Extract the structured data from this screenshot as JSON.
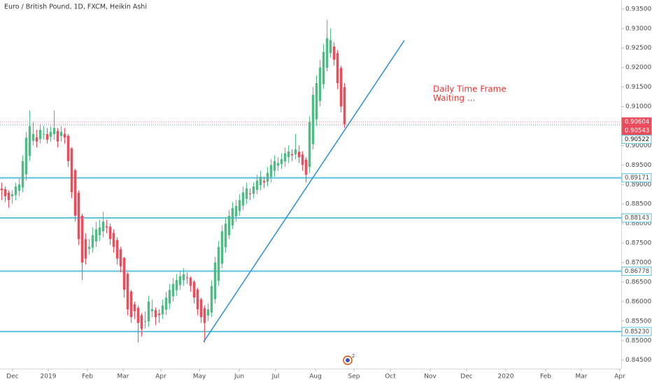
{
  "chart_data": {
    "type": "candlestick",
    "title": "Euro / British Pound, 1D, FXCM, Heikin Ashi",
    "annotation": [
      "Daily Time Frame",
      "Waiting ..."
    ],
    "event_badge": "2",
    "up_color": "#53b987",
    "down_color": "#eb4d5c",
    "open": [
      0.889,
      0.8888,
      0.8879,
      0.887,
      0.8873,
      0.8884,
      0.8892,
      0.8926,
      0.8973,
      0.9012,
      0.9021,
      0.9016,
      0.9028,
      0.9029,
      0.9022,
      0.9029,
      0.9037,
      0.9024,
      0.903,
      0.9025,
      0.8993,
      0.8937,
      0.8879,
      0.882,
      0.876,
      0.8735,
      0.8738,
      0.8754,
      0.877,
      0.878,
      0.8793,
      0.8792,
      0.8776,
      0.8758,
      0.8734,
      0.8712,
      0.8671,
      0.8626,
      0.8593,
      0.8584,
      0.8565,
      0.8548,
      0.8549,
      0.8575,
      0.8578,
      0.8569,
      0.8567,
      0.8579,
      0.8595,
      0.8613,
      0.8629,
      0.8642,
      0.8654,
      0.8662,
      0.8661,
      0.8651,
      0.8631,
      0.8606,
      0.8583,
      0.8564,
      0.8572,
      0.8606,
      0.8653,
      0.8697,
      0.8739,
      0.877,
      0.8795,
      0.8818,
      0.8832,
      0.8846,
      0.8863,
      0.8877,
      0.8876,
      0.8886,
      0.8898,
      0.8909,
      0.8907,
      0.8919,
      0.8935,
      0.8948,
      0.8952,
      0.8959,
      0.897,
      0.8978,
      0.8977,
      0.8984,
      0.8977,
      0.8964,
      0.8945,
      0.9003,
      0.9067,
      0.9114,
      0.9157,
      0.9199,
      0.9237,
      0.9254,
      0.9237,
      0.9199,
      0.915
    ],
    "high": [
      0.8905,
      0.8895,
      0.8885,
      0.8885,
      0.8905,
      0.8915,
      0.8975,
      0.9035,
      0.909,
      0.906,
      0.904,
      0.9055,
      0.905,
      0.9045,
      0.905,
      0.909,
      0.9045,
      0.905,
      0.9045,
      0.903,
      0.8995,
      0.894,
      0.8885,
      0.8825,
      0.8775,
      0.876,
      0.879,
      0.8805,
      0.881,
      0.883,
      0.881,
      0.88,
      0.8785,
      0.8765,
      0.874,
      0.8715,
      0.8675,
      0.863,
      0.86,
      0.859,
      0.857,
      0.8575,
      0.8615,
      0.8605,
      0.8585,
      0.858,
      0.8605,
      0.8625,
      0.8645,
      0.866,
      0.867,
      0.868,
      0.8685,
      0.8675,
      0.8665,
      0.8655,
      0.8635,
      0.861,
      0.859,
      0.8595,
      0.8655,
      0.8715,
      0.8755,
      0.8795,
      0.8815,
      0.8835,
      0.8855,
      0.886,
      0.8875,
      0.8895,
      0.8905,
      0.889,
      0.8905,
      0.8925,
      0.8935,
      0.892,
      0.8945,
      0.8965,
      0.8975,
      0.897,
      0.898,
      0.8995,
      0.9,
      0.899,
      0.903,
      0.9,
      0.8985,
      0.897,
      0.9075,
      0.915,
      0.918,
      0.922,
      0.926,
      0.9322,
      0.93,
      0.9265,
      0.9245,
      0.9205,
      0.916
    ],
    "low": [
      0.886,
      0.8855,
      0.884,
      0.885,
      0.886,
      0.887,
      0.888,
      0.891,
      0.896,
      0.9,
      0.8995,
      0.9005,
      0.9015,
      0.9005,
      0.901,
      0.9015,
      0.8995,
      0.901,
      0.9005,
      0.8945,
      0.8865,
      0.8805,
      0.8745,
      0.8655,
      0.8695,
      0.872,
      0.8725,
      0.874,
      0.8755,
      0.8765,
      0.8775,
      0.8745,
      0.8725,
      0.8695,
      0.8675,
      0.861,
      0.8565,
      0.8545,
      0.8555,
      0.8495,
      0.851,
      0.853,
      0.8535,
      0.856,
      0.854,
      0.8545,
      0.8555,
      0.8565,
      0.858,
      0.86,
      0.8615,
      0.863,
      0.864,
      0.8645,
      0.8625,
      0.8595,
      0.8565,
      0.8545,
      0.8495,
      0.855,
      0.856,
      0.8595,
      0.864,
      0.8685,
      0.8725,
      0.876,
      0.8785,
      0.8805,
      0.882,
      0.8835,
      0.885,
      0.886,
      0.8865,
      0.8875,
      0.8885,
      0.889,
      0.8895,
      0.8905,
      0.892,
      0.8935,
      0.894,
      0.8945,
      0.8955,
      0.896,
      0.8965,
      0.8955,
      0.8935,
      0.8905,
      0.893,
      0.899,
      0.905,
      0.91,
      0.9145,
      0.919,
      0.9225,
      0.9205,
      0.9145,
      0.9085,
      0.9045
    ],
    "close": [
      0.8885,
      0.887,
      0.886,
      0.8875,
      0.8895,
      0.89,
      0.896,
      0.902,
      0.905,
      0.903,
      0.901,
      0.904,
      0.903,
      0.9015,
      0.9035,
      0.9045,
      0.901,
      0.9035,
      0.902,
      0.896,
      0.888,
      0.882,
      0.876,
      0.87,
      0.871,
      0.874,
      0.877,
      0.8785,
      0.879,
      0.8805,
      0.879,
      0.876,
      0.874,
      0.871,
      0.869,
      0.863,
      0.858,
      0.856,
      0.8575,
      0.8545,
      0.853,
      0.855,
      0.86,
      0.858,
      0.856,
      0.8565,
      0.859,
      0.861,
      0.863,
      0.8645,
      0.8655,
      0.8665,
      0.867,
      0.866,
      0.864,
      0.861,
      0.858,
      0.856,
      0.8545,
      0.858,
      0.864,
      0.87,
      0.874,
      0.878,
      0.88,
      0.882,
      0.884,
      0.8845,
      0.886,
      0.888,
      0.889,
      0.8875,
      0.8895,
      0.891,
      0.892,
      0.8905,
      0.893,
      0.895,
      0.896,
      0.8955,
      0.8965,
      0.898,
      0.8985,
      0.8975,
      0.899,
      0.897,
      0.895,
      0.8925,
      0.906,
      0.913,
      0.916,
      0.92,
      0.924,
      0.9275,
      0.927,
      0.922,
      0.916,
      0.91,
      0.9054
    ],
    "xlim": [
      -0.5,
      177.1
    ],
    "xticks": [
      {
        "value": 3.1,
        "label": "Dec"
      },
      {
        "value": 13.3,
        "label": "2019"
      },
      {
        "value": 24.5,
        "label": "Feb"
      },
      {
        "value": 34.7,
        "label": "Mar"
      },
      {
        "value": 45.5,
        "label": "Apr"
      },
      {
        "value": 56.5,
        "label": "May"
      },
      {
        "value": 67.9,
        "label": "Jun"
      },
      {
        "value": 78.3,
        "label": "Jul"
      },
      {
        "value": 89.7,
        "label": "Aug"
      },
      {
        "value": 100.7,
        "label": "Sep"
      },
      {
        "value": 111.1,
        "label": "Oct"
      },
      {
        "value": 122.5,
        "label": "Nov"
      },
      {
        "value": 132.9,
        "label": "Dec"
      },
      {
        "value": 144.1,
        "label": "2020"
      },
      {
        "value": 155.5,
        "label": "Feb"
      },
      {
        "value": 165.7,
        "label": "Mar"
      },
      {
        "value": 176.7,
        "label": "Apr"
      }
    ],
    "ylim": [
      0.8428,
      0.9373
    ],
    "yticks": [
      {
        "value": 0.845,
        "label": "0.84500"
      },
      {
        "value": 0.85,
        "label": "0.85000"
      },
      {
        "value": 0.855,
        "label": "0.85500"
      },
      {
        "value": 0.86,
        "label": "0.86000"
      },
      {
        "value": 0.865,
        "label": "0.86500"
      },
      {
        "value": 0.87,
        "label": "0.87000"
      },
      {
        "value": 0.875,
        "label": "0.87500"
      },
      {
        "value": 0.88,
        "label": "0.88000"
      },
      {
        "value": 0.885,
        "label": "0.88500"
      },
      {
        "value": 0.89,
        "label": "0.89000"
      },
      {
        "value": 0.895,
        "label": "0.89500"
      },
      {
        "value": 0.9,
        "label": "0.90000"
      },
      {
        "value": 0.905,
        "label": "0.90500"
      },
      {
        "value": 0.91,
        "label": "0.91000"
      },
      {
        "value": 0.915,
        "label": "0.91500"
      },
      {
        "value": 0.92,
        "label": "0.92000"
      },
      {
        "value": 0.925,
        "label": "0.92500"
      },
      {
        "value": 0.93,
        "label": "0.93000"
      },
      {
        "value": 0.935,
        "label": "0.93500"
      }
    ],
    "level_color": "#5bc3e0",
    "levels": [
      {
        "value": 0.89171,
        "label": "0.89171"
      },
      {
        "value": 0.88143,
        "label": "0.88143"
      },
      {
        "value": 0.86778,
        "label": "0.86778"
      },
      {
        "value": 0.8523,
        "label": "0.85230"
      }
    ],
    "price_badges": [
      {
        "value": 0.90604,
        "label": "0.90604",
        "color": "#eb4d5c"
      },
      {
        "value": 0.90543,
        "label": "0.90543",
        "color": "#eb4d5c"
      },
      {
        "value": 0.90522,
        "label": "0.90522",
        "color": "#5bc3e0"
      }
    ],
    "trendline": {
      "x": [
        57.7,
        115.1
      ],
      "y": [
        0.84965,
        0.92696
      ],
      "color": "#2d8fd5"
    }
  }
}
